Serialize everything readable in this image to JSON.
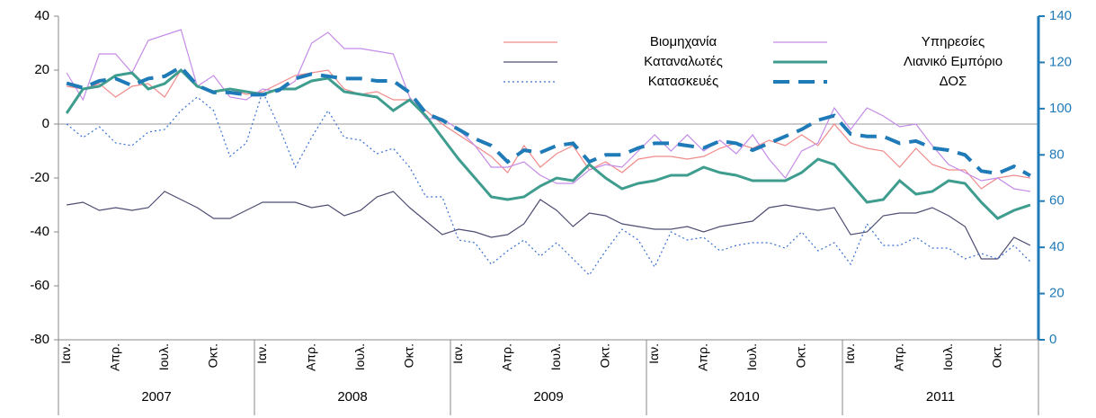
{
  "chart_data": {
    "type": "line",
    "categories": [
      "Ιαν.",
      null,
      null,
      "Απρ.",
      null,
      null,
      "Ιουλ.",
      null,
      null,
      "Οκτ.",
      null,
      null,
      "Ιαν.",
      null,
      null,
      "Απρ.",
      null,
      null,
      "Ιουλ.",
      null,
      null,
      "Οκτ.",
      null,
      null,
      "Ιαν.",
      null,
      null,
      "Απρ.",
      null,
      null,
      "Ιουλ.",
      null,
      null,
      "Οκτ.",
      null,
      null,
      "Ιαν.",
      null,
      null,
      "Απρ.",
      null,
      null,
      "Ιουλ.",
      null,
      null,
      "Οκτ.",
      null,
      null,
      "Ιαν.",
      null,
      null,
      "Απρ.",
      null,
      null,
      "Ιουλ.",
      null,
      null,
      "Οκτ.",
      null,
      null
    ],
    "years": [
      "2007",
      "2008",
      "2009",
      "2010",
      "2011"
    ],
    "ylim": [
      -80,
      40
    ],
    "yticks": [
      -80,
      -60,
      -40,
      -20,
      0,
      20,
      40
    ],
    "y2lim": [
      0,
      140
    ],
    "y2ticks": [
      0,
      20,
      40,
      60,
      80,
      100,
      120,
      140
    ],
    "legend": "top",
    "series": [
      {
        "name": "Βιομηχανία",
        "color": "#f08a8a",
        "width": 1.2,
        "dash": "none",
        "values": [
          14,
          13,
          15,
          10,
          14,
          15,
          10,
          20,
          14,
          12,
          13,
          11,
          12,
          15,
          18,
          19,
          20,
          13,
          11,
          12,
          9,
          9,
          5,
          0,
          -4,
          -8,
          -12,
          -18,
          -8,
          -16,
          -11,
          -8,
          -17,
          -14,
          -18,
          -13,
          -12,
          -12,
          -13,
          -12,
          -9,
          -7,
          -9,
          -6,
          -8,
          -4,
          -8,
          0,
          -7,
          -9,
          -10,
          -16,
          -9,
          -15,
          -17,
          -17,
          -24,
          -20,
          -19,
          -20
        ]
      },
      {
        "name": "Υπηρεσίες",
        "color": "#c58be8",
        "width": 1.2,
        "dash": "none",
        "values": [
          19,
          9,
          26,
          26,
          19,
          31,
          33,
          35,
          14,
          18,
          10,
          9,
          13,
          12,
          16,
          30,
          34,
          28,
          28,
          27,
          26,
          10,
          2,
          2,
          -2,
          -8,
          -16,
          -16,
          -14,
          -19,
          -22,
          -22,
          -17,
          -15,
          -16,
          -10,
          -4,
          -10,
          -4,
          -10,
          -6,
          -11,
          -4,
          -13,
          -20,
          -10,
          -7,
          6,
          -2,
          6,
          3,
          -1,
          0,
          -8,
          -15,
          -18,
          -21,
          -20,
          -24,
          -25
        ]
      },
      {
        "name": "Καταναλωτές",
        "color": "#4d4d73",
        "width": 1.2,
        "dash": "none",
        "values": [
          -30,
          -29,
          -32,
          -31,
          -32,
          -31,
          -25,
          -28,
          -31,
          -35,
          -35,
          -32,
          -29,
          -29,
          -29,
          -31,
          -30,
          -34,
          -32,
          -27,
          -25,
          -31,
          -36,
          -41,
          -39,
          -40,
          -42,
          -41,
          -37,
          -28,
          -32,
          -38,
          -33,
          -34,
          -37,
          -38,
          -39,
          -39,
          -38,
          -40,
          -38,
          -37,
          -36,
          -31,
          -30,
          -31,
          -32,
          -31,
          -41,
          -40,
          -34,
          -33,
          -33,
          -31,
          -34,
          -38,
          -50,
          -50,
          -42,
          -45
        ]
      },
      {
        "name": "Λιανικό Εμπόριο",
        "color": "#3e9d8e",
        "width": 3,
        "dash": "none",
        "values": [
          4,
          13,
          14,
          18,
          19,
          13,
          15,
          20,
          14,
          12,
          13,
          12,
          11,
          13,
          13,
          16,
          17,
          12,
          11,
          10,
          5,
          9,
          3,
          -5,
          -13,
          -20,
          -27,
          -28,
          -27,
          -23,
          -20,
          -21,
          -15,
          -20,
          -24,
          -22,
          -21,
          -19,
          -19,
          -16,
          -18,
          -19,
          -21,
          -21,
          -21,
          -18,
          -13,
          -15,
          -22,
          -29,
          -28,
          -21,
          -26,
          -25,
          -21,
          -22,
          -29,
          -35,
          -32,
          -30
        ]
      },
      {
        "name": "Κατασκευές",
        "color": "#3a6fd0",
        "width": 1.2,
        "dash": "2 3",
        "values": [
          0,
          -5,
          -1,
          -7,
          -8,
          -3,
          -2,
          5,
          10,
          5,
          -12,
          -7,
          12,
          -1,
          -16,
          -5,
          5,
          -5,
          -6,
          -11,
          -9,
          -16,
          -27,
          -27,
          -43,
          -44,
          -52,
          -47,
          -43,
          -49,
          -44,
          -50,
          -56,
          -47,
          -39,
          -43,
          -53,
          -40,
          -43,
          -42,
          -47,
          -45,
          -44,
          -44,
          -46,
          -40,
          -47,
          -44,
          -52,
          -37,
          -45,
          -45,
          -42,
          -46,
          -46,
          -50,
          -48,
          -50,
          -45,
          -51
        ]
      },
      {
        "name": "ΔΟΣ",
        "color": "#1f7ab8",
        "width": 4,
        "dash": "18 10",
        "axis": "y2",
        "values": [
          111,
          109,
          112,
          113,
          110,
          113,
          114,
          118,
          110,
          107,
          107,
          106,
          106,
          108,
          113,
          115,
          114,
          113,
          113,
          112,
          112,
          107,
          98,
          95,
          91,
          87,
          84,
          77,
          82,
          81,
          84,
          85,
          77,
          80,
          80,
          83,
          85,
          85,
          84,
          83,
          86,
          85,
          82,
          85,
          88,
          91,
          95,
          97,
          89,
          88,
          88,
          85,
          86,
          83,
          82,
          80,
          73,
          72,
          75,
          71
        ]
      }
    ]
  }
}
